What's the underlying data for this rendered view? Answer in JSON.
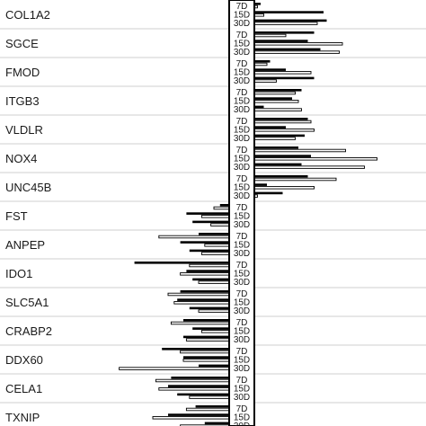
{
  "chart_data": {
    "type": "bar",
    "orientation": "horizontal",
    "title": "",
    "xlabel": "",
    "ylabel": "",
    "grid": "horizontal separators between genes",
    "legend": "none",
    "xlim": [
      -5.2,
      5.2
    ],
    "timepoint_labels": [
      "7D",
      "15D",
      "30D"
    ],
    "bars_per_timepoint": 2,
    "bar_styles": [
      "filled",
      "hollow"
    ],
    "genes": [
      {
        "name": "COL1A2",
        "values": {
          "7D": [
            0.2,
            0.1
          ],
          "15D": [
            2.2,
            0.3
          ],
          "30D": [
            2.3,
            2.0
          ]
        }
      },
      {
        "name": "SGCE",
        "values": {
          "7D": [
            1.9,
            1.0
          ],
          "15D": [
            1.7,
            2.8
          ],
          "30D": [
            2.1,
            2.7
          ]
        }
      },
      {
        "name": "FMOD",
        "values": {
          "7D": [
            0.5,
            0.4
          ],
          "15D": [
            1.0,
            1.8
          ],
          "30D": [
            1.9,
            0.7
          ]
        }
      },
      {
        "name": "ITGB3",
        "values": {
          "7D": [
            1.5,
            1.3
          ],
          "15D": [
            1.2,
            1.4
          ],
          "30D": [
            0.3,
            1.5
          ]
        }
      },
      {
        "name": "VLDLR",
        "values": {
          "7D": [
            1.7,
            1.8
          ],
          "15D": [
            1.0,
            1.9
          ],
          "30D": [
            1.6,
            1.3
          ]
        }
      },
      {
        "name": "NOX4",
        "values": {
          "7D": [
            1.4,
            2.9
          ],
          "15D": [
            1.8,
            3.9
          ],
          "30D": [
            1.5,
            3.5
          ]
        }
      },
      {
        "name": "UNC45B",
        "values": {
          "7D": [
            1.7,
            2.6
          ],
          "15D": [
            0.4,
            1.9
          ],
          "30D": [
            0.9,
            0.1
          ]
        }
      },
      {
        "name": "FST",
        "values": {
          "7D": [
            -0.3,
            -0.5
          ],
          "15D": [
            -1.4,
            -0.9
          ],
          "30D": [
            -1.2,
            -0.6
          ]
        }
      },
      {
        "name": "ANPEP",
        "values": {
          "7D": [
            -1.0,
            -2.3
          ],
          "15D": [
            -1.6,
            -0.8
          ],
          "30D": [
            -1.3,
            -0.9
          ]
        }
      },
      {
        "name": "IDO1",
        "values": {
          "7D": [
            -3.1,
            -1.3
          ],
          "15D": [
            -1.4,
            -1.6
          ],
          "30D": [
            -1.2,
            -1.0
          ]
        }
      },
      {
        "name": "SLC5A1",
        "values": {
          "7D": [
            -1.6,
            -2.0
          ],
          "15D": [
            -1.7,
            -1.8
          ],
          "30D": [
            -1.3,
            -1.0
          ]
        }
      },
      {
        "name": "CRABP2",
        "values": {
          "7D": [
            -1.5,
            -1.9
          ],
          "15D": [
            -1.2,
            -0.9
          ],
          "30D": [
            -1.5,
            -1.4
          ]
        }
      },
      {
        "name": "DDX60",
        "values": {
          "7D": [
            -2.2,
            -1.6
          ],
          "15D": [
            -1.5,
            -1.5
          ],
          "30D": [
            -1.0,
            -3.6
          ]
        }
      },
      {
        "name": "CELA1",
        "values": {
          "7D": [
            -1.9,
            -2.4
          ],
          "15D": [
            -2.0,
            -2.3
          ],
          "30D": [
            -1.7,
            -1.3
          ]
        }
      },
      {
        "name": "TXNIP",
        "values": {
          "7D": [
            -1.1,
            -1.4
          ],
          "15D": [
            -2.0,
            -2.5
          ],
          "30D": [
            -0.8,
            -1.6
          ]
        }
      }
    ]
  }
}
